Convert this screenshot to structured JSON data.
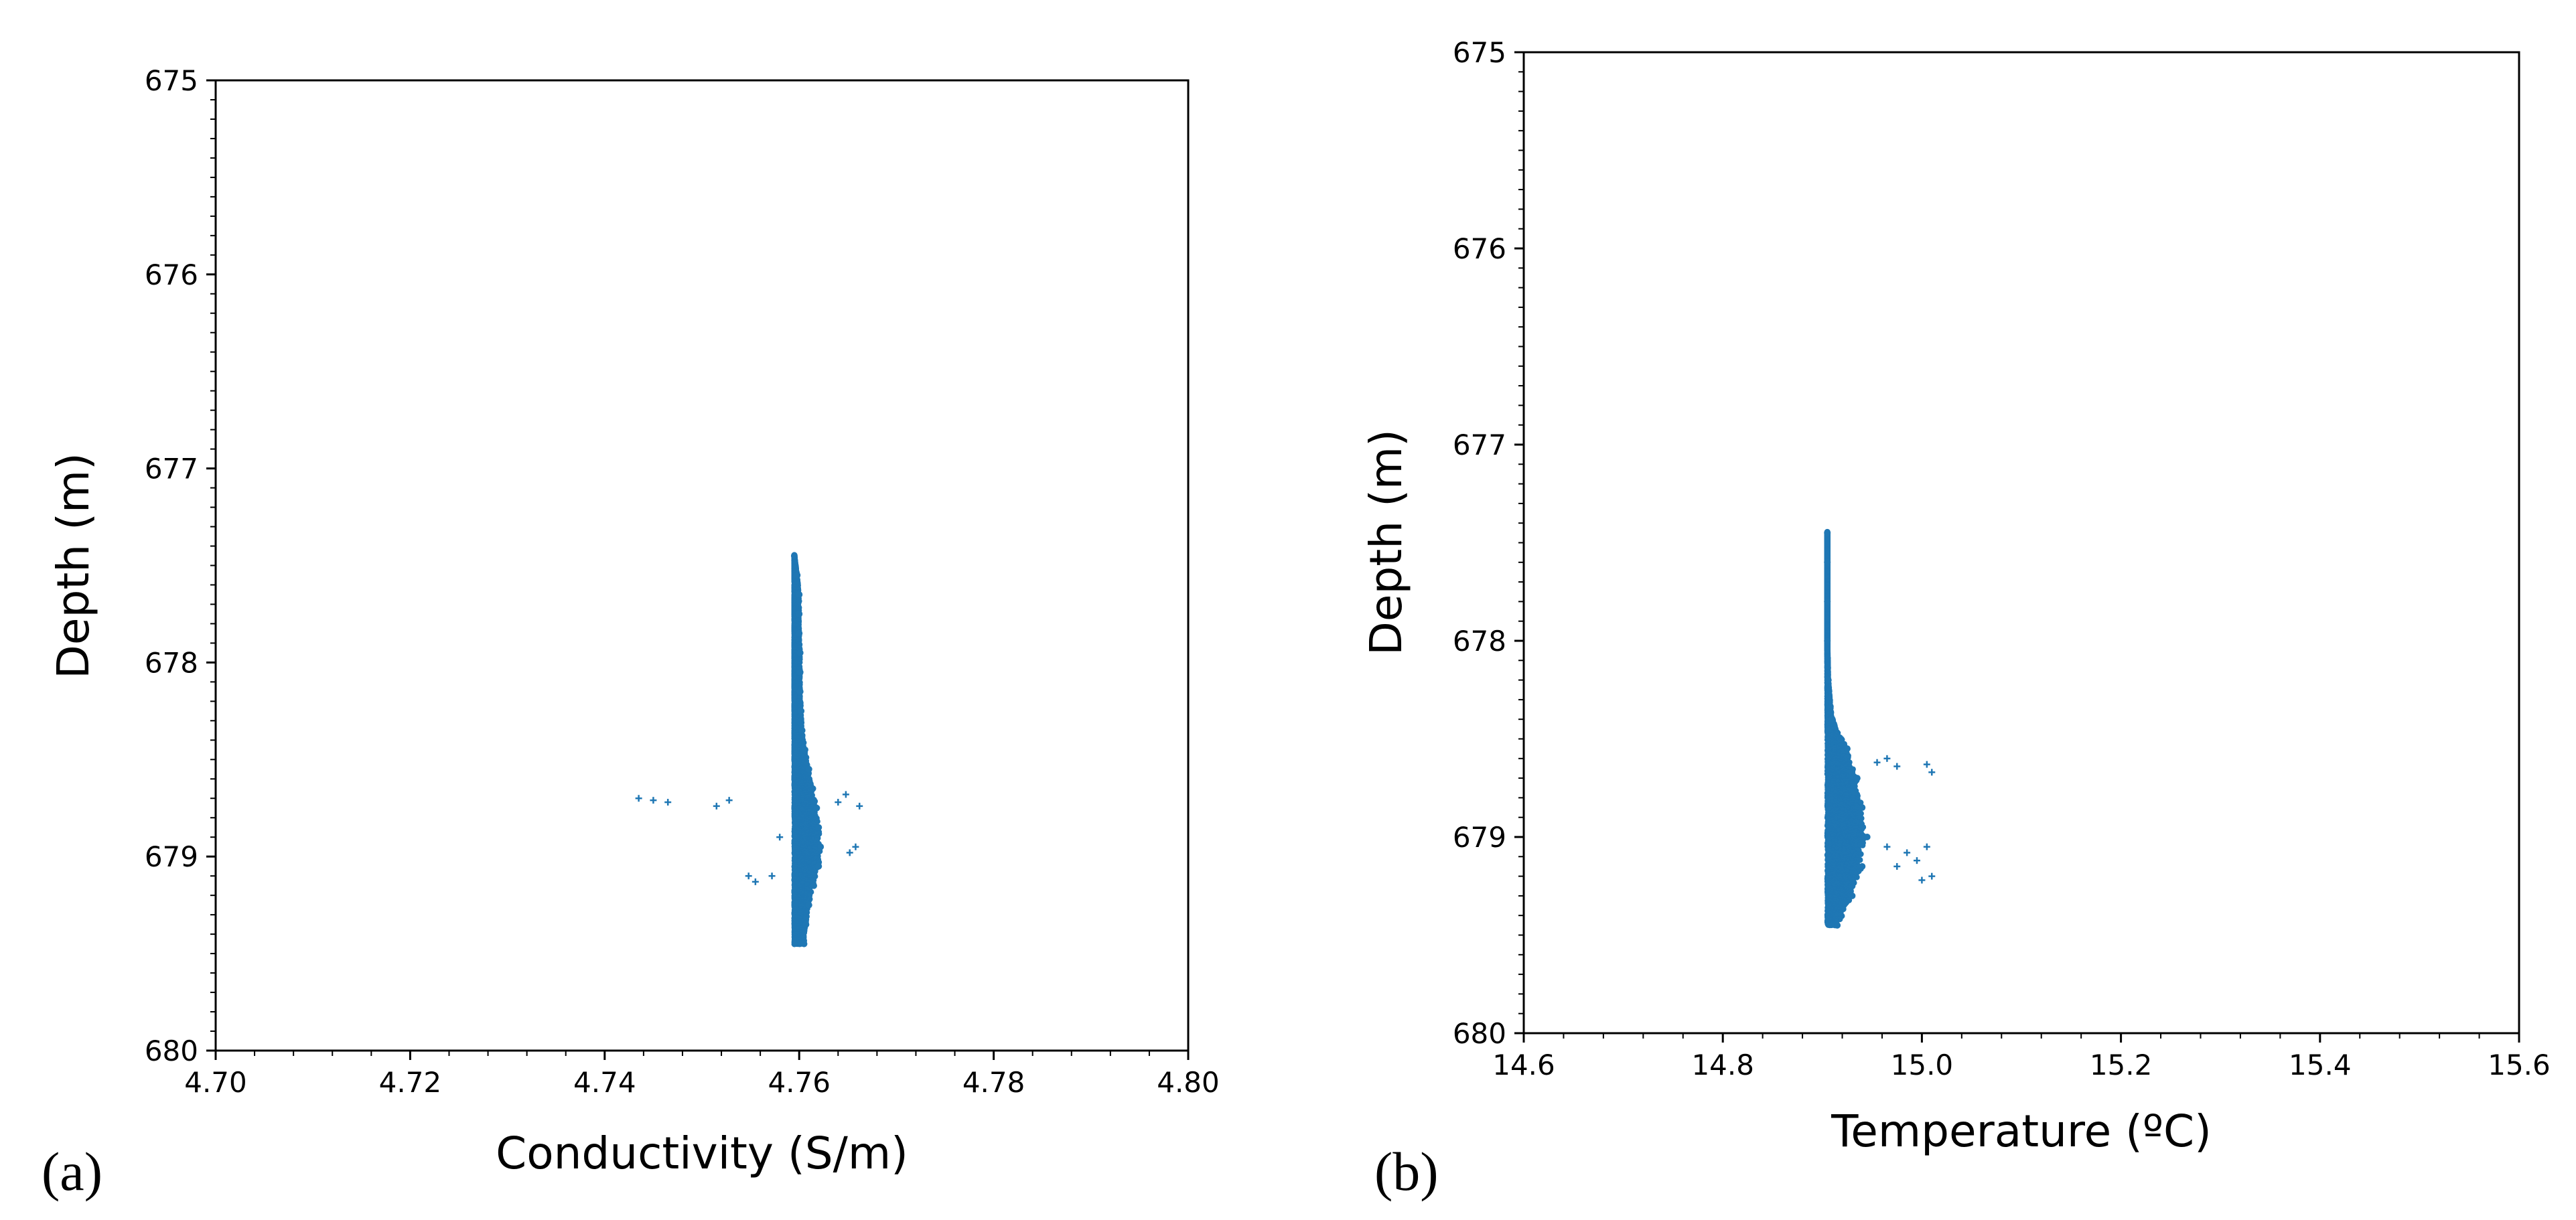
{
  "chart_data": [
    {
      "type": "scatter",
      "panel_label": "(a)",
      "xlabel": "Conductivity (S/m)",
      "ylabel": "Depth (m)",
      "xlim": [
        4.7,
        4.8
      ],
      "ylim": [
        675,
        680
      ],
      "y_inverted": true,
      "xticks": [
        "4.70",
        "4.72",
        "4.74",
        "4.76",
        "4.78",
        "4.80"
      ],
      "yticks": [
        "675",
        "676",
        "677",
        "678",
        "679",
        "680"
      ],
      "marker_color": "#1f77b4",
      "description_note": "dense column of points near x=4.759-4.766, depth 677.45-679.45",
      "series": [
        {
          "name": "core",
          "points": [
            [
              4.7595,
              677.45
            ],
            [
              4.7598,
              677.55
            ],
            [
              4.76,
              677.65
            ],
            [
              4.76,
              677.75
            ],
            [
              4.76,
              677.85
            ],
            [
              4.7601,
              677.95
            ],
            [
              4.7601,
              678.05
            ],
            [
              4.7601,
              678.15
            ],
            [
              4.7602,
              678.25
            ],
            [
              4.7603,
              678.35
            ],
            [
              4.7606,
              678.45
            ],
            [
              4.761,
              678.55
            ],
            [
              4.7614,
              678.65
            ],
            [
              4.7618,
              678.75
            ],
            [
              4.762,
              678.85
            ],
            [
              4.7622,
              678.95
            ],
            [
              4.762,
              679.05
            ],
            [
              4.7615,
              679.15
            ],
            [
              4.761,
              679.25
            ],
            [
              4.7607,
              679.35
            ],
            [
              4.7605,
              679.45
            ]
          ]
        },
        {
          "name": "outliers",
          "points": [
            [
              4.7435,
              678.7
            ],
            [
              4.745,
              678.71
            ],
            [
              4.7465,
              678.72
            ],
            [
              4.7515,
              678.74
            ],
            [
              4.7528,
              678.71
            ],
            [
              4.7548,
              679.1
            ],
            [
              4.7555,
              679.13
            ],
            [
              4.7572,
              679.1
            ],
            [
              4.758,
              678.9
            ],
            [
              4.764,
              678.72
            ],
            [
              4.7648,
              678.68
            ],
            [
              4.7662,
              678.74
            ],
            [
              4.7658,
              678.95
            ],
            [
              4.7652,
              678.98
            ]
          ]
        }
      ]
    },
    {
      "type": "scatter",
      "panel_label": "(b)",
      "xlabel": "Temperature (ºC)",
      "ylabel": "Depth (m)",
      "xlim": [
        14.6,
        15.6
      ],
      "ylim": [
        675,
        680
      ],
      "y_inverted": true,
      "xticks": [
        "14.6",
        "14.8",
        "15.0",
        "15.2",
        "15.4",
        "15.6"
      ],
      "yticks": [
        "675",
        "676",
        "677",
        "678",
        "679",
        "680"
      ],
      "marker_color": "#1f77b4",
      "series": [
        {
          "name": "core",
          "points": [
            [
              14.905,
              677.45
            ],
            [
              14.905,
              677.6
            ],
            [
              14.905,
              677.8
            ],
            [
              14.905,
              678.0
            ],
            [
              14.906,
              678.2
            ],
            [
              14.91,
              678.4
            ],
            [
              14.925,
              678.55
            ],
            [
              14.935,
              678.7
            ],
            [
              14.94,
              678.85
            ],
            [
              14.945,
              679.0
            ],
            [
              14.94,
              679.15
            ],
            [
              14.93,
              679.3
            ],
            [
              14.915,
              679.45
            ]
          ]
        },
        {
          "name": "outliers",
          "points": [
            [
              14.955,
              678.62
            ],
            [
              14.965,
              678.6
            ],
            [
              14.975,
              678.64
            ],
            [
              15.005,
              678.63
            ],
            [
              15.01,
              678.67
            ],
            [
              14.965,
              679.05
            ],
            [
              14.985,
              679.08
            ],
            [
              14.995,
              679.12
            ],
            [
              15.005,
              679.05
            ],
            [
              15.01,
              679.2
            ],
            [
              15.0,
              679.22
            ],
            [
              14.975,
              679.15
            ]
          ]
        }
      ]
    }
  ]
}
